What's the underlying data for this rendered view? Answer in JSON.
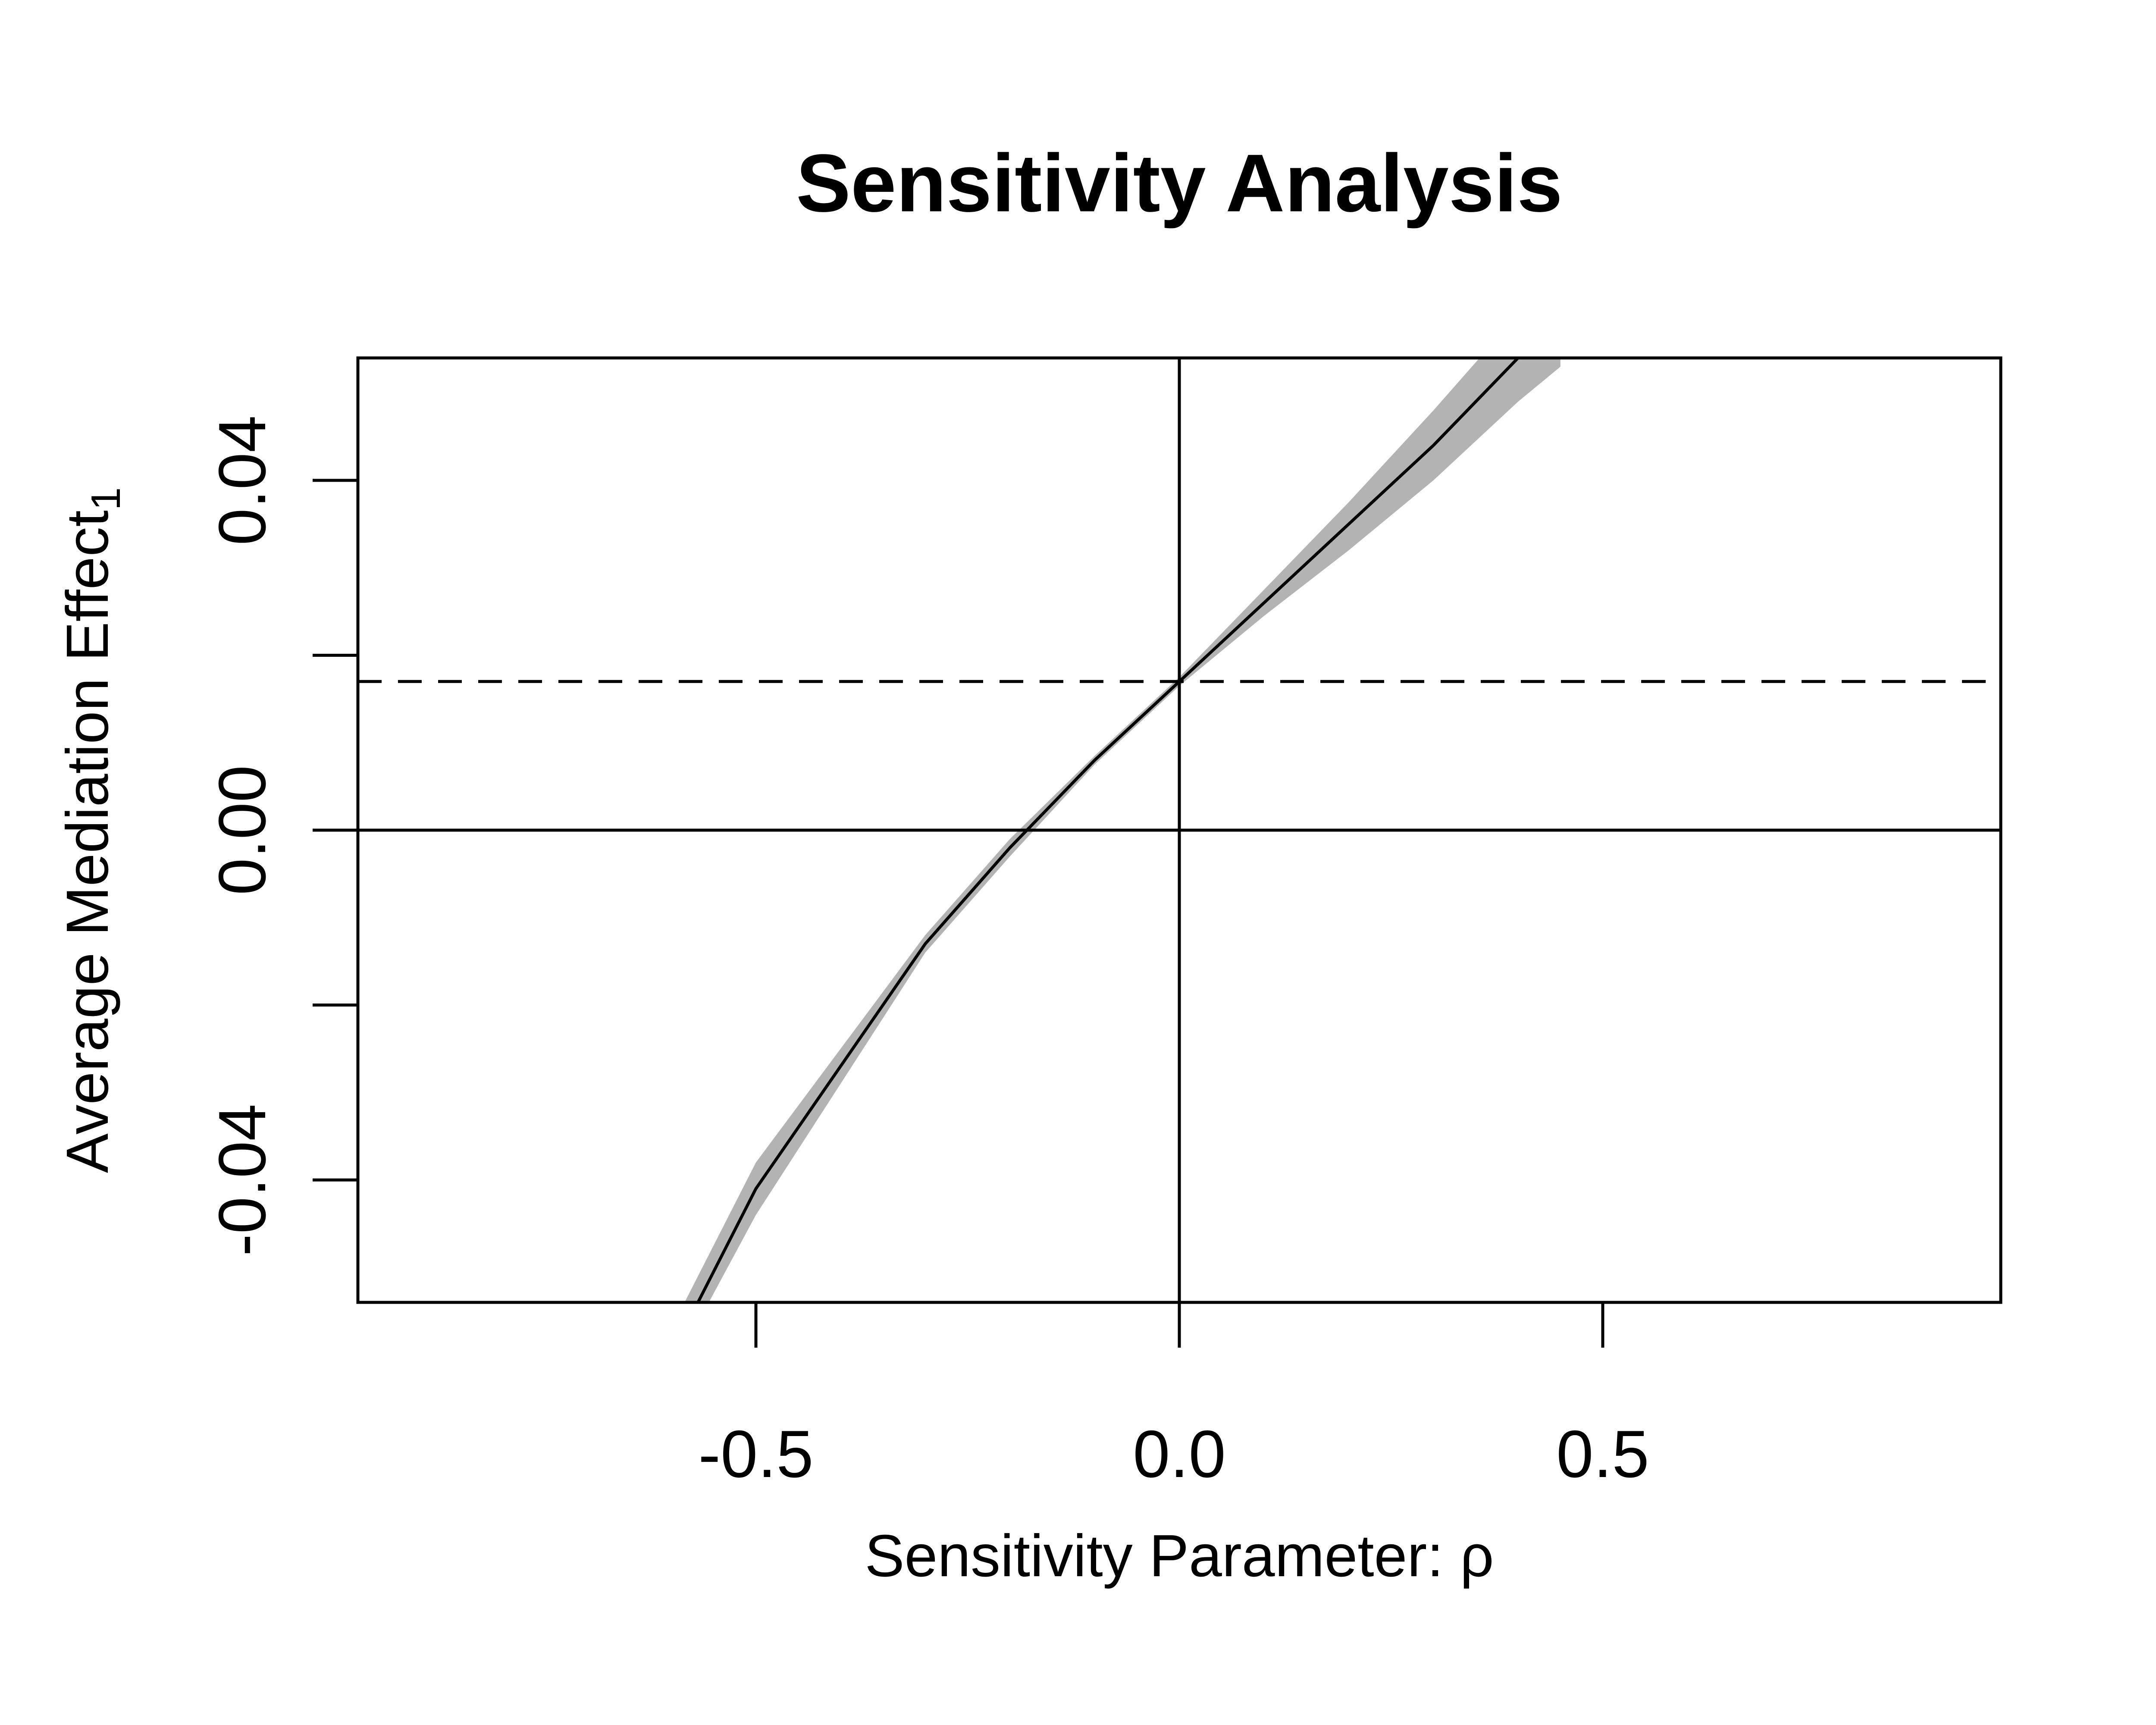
{
  "chart_data": {
    "type": "line",
    "title": "Sensitivity Analysis",
    "xlabel": "Sensitivity Parameter: ρ",
    "ylabel": "Average Mediation Effect",
    "ylabel_subscript": "1",
    "xlim": [
      -0.97,
      0.97
    ],
    "ylim": [
      -0.054,
      0.054
    ],
    "x_ticks": [
      -0.5,
      0.0,
      0.5
    ],
    "x_tick_labels": [
      "-0.5",
      "0.0",
      "0.5"
    ],
    "y_ticks": [
      -0.04,
      -0.02,
      0.0,
      0.02,
      0.04
    ],
    "y_tick_labels": [
      "-0.04",
      "",
      "0.00",
      "",
      "0.04"
    ],
    "grid": false,
    "reference_lines": {
      "zero_horizontal": 0.0,
      "zero_vertical": 0.0,
      "estimate_dashed": 0.017
    },
    "series": [
      {
        "x": [
          -0.6,
          -0.5,
          -0.4,
          -0.3,
          -0.2,
          -0.1,
          0.0,
          0.1,
          0.2,
          0.3,
          0.4,
          0.45
        ],
        "y": [
          -0.06,
          -0.041,
          -0.027,
          -0.013,
          -0.002,
          0.008,
          0.017,
          0.026,
          0.035,
          0.044,
          0.054,
          0.059
        ],
        "lower": [
          -0.062,
          -0.044,
          -0.029,
          -0.014,
          -0.003,
          0.0075,
          0.0165,
          0.0245,
          0.032,
          0.04,
          0.049,
          0.053
        ],
        "upper": [
          -0.057,
          -0.038,
          -0.025,
          -0.012,
          -0.001,
          0.0085,
          0.0175,
          0.0275,
          0.0375,
          0.048,
          0.059,
          0.065
        ]
      }
    ],
    "colors": {
      "line": "#000000",
      "band": "#b3b3b3",
      "axes": "#000000"
    }
  }
}
